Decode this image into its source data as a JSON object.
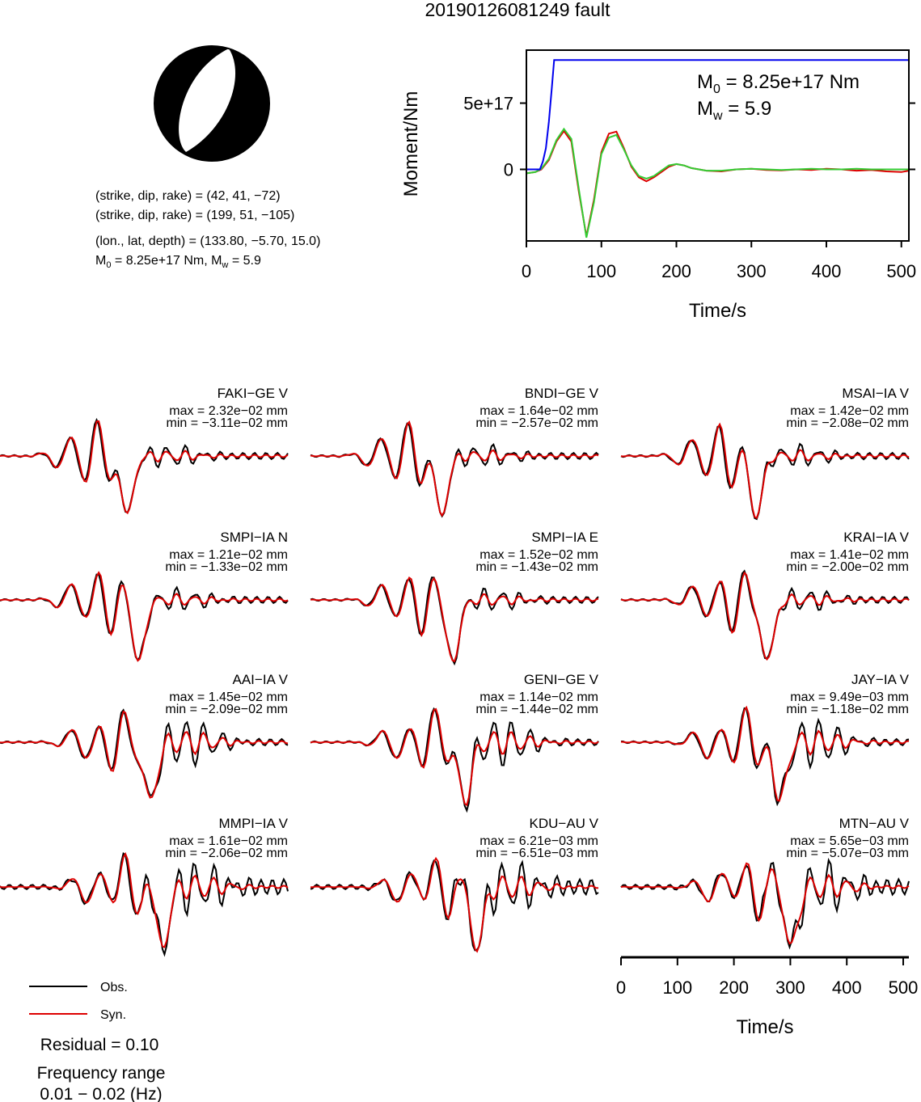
{
  "title": "20190126081249 fault",
  "mechanism": {
    "planes": [
      "(strike, dip, rake) = (42, 41, −72)",
      "(strike, dip, rake) = (199, 51, −105)"
    ],
    "location": "(lon., lat, depth) = (133.80, −5.70, 15.0)",
    "moment_base": "M",
    "moment_sub": "0",
    "moment_rest": " = 8.25e+17 Nm, M",
    "mw_sub": "w",
    "mw_rest": " = 5.9"
  },
  "colors": {
    "observed": "#000000",
    "synthetic": "#dd0000",
    "moment": "#0000ee",
    "stf_green": "#33cc33"
  },
  "chart_data": [
    {
      "type": "line",
      "name": "moment-rate",
      "xlabel": "Time/s",
      "ylabel": "Moment/Nm",
      "xlim": [
        0,
        510
      ],
      "ylim": [
        -5.4e+17,
        9e+17
      ],
      "xticks": [
        0,
        100,
        200,
        300,
        400,
        500
      ],
      "xtick_labels": [
        "0",
        "100",
        "200",
        "300",
        "400",
        "500"
      ],
      "yticks": [
        0,
        5e+17
      ],
      "ytick_labels": [
        "0",
        "5e+17"
      ],
      "annotation": {
        "m_base": "M",
        "m_sub": "0",
        "m_rest": " = 8.25e+17 Nm",
        "w_base": "M",
        "w_sub": "w",
        "w_rest": " = 5.9"
      },
      "series": [
        {
          "color": "#0000ee",
          "x": [
            0,
            18,
            22,
            26,
            30,
            34,
            37,
            510
          ],
          "y": [
            0,
            0,
            6e+16,
            1.6e+17,
            3.6e+17,
            6.2e+17,
            8.25e+17,
            8.25e+17
          ]
        },
        {
          "color": "#33cc33",
          "x": [
            0,
            12,
            20,
            30,
            40,
            50,
            60,
            70,
            80,
            90,
            100,
            110,
            120,
            130,
            140,
            150,
            160,
            170,
            180,
            190,
            200,
            210,
            220,
            230,
            240,
            260,
            280,
            300,
            320,
            340,
            360,
            380,
            400,
            420,
            440,
            460,
            480,
            500,
            510
          ],
          "y": [
            -3e+16,
            -2e+16,
            5000000000000000.0,
            8e+16,
            2.2e+17,
            3.05e+17,
            2.3e+17,
            -1.5e+17,
            -5.15e+17,
            -2.5e+17,
            1.15e+17,
            2.4e+17,
            2.6e+17,
            1.5e+17,
            3e+16,
            -5e+16,
            -7e+16,
            -5e+16,
            -1e+16,
            3e+16,
            4e+16,
            3e+16,
            1e+16,
            0,
            -1e+16,
            -1e+16,
            0,
            5000000000000000.0,
            0,
            -5000000000000000.0,
            0,
            5000000000000000.0,
            0,
            0,
            5000000000000000.0,
            0,
            0,
            0,
            0
          ]
        },
        {
          "color": "#dd0000",
          "x": [
            0,
            12,
            20,
            30,
            40,
            50,
            60,
            70,
            80,
            90,
            100,
            110,
            120,
            130,
            140,
            150,
            160,
            170,
            180,
            190,
            200,
            210,
            220,
            230,
            240,
            260,
            280,
            300,
            320,
            340,
            360,
            380,
            400,
            420,
            440,
            460,
            480,
            500,
            510
          ],
          "y": [
            -3e+16,
            -2e+16,
            0,
            7e+16,
            2.1e+17,
            2.9e+17,
            2.1e+17,
            -1.7e+17,
            -5.05e+17,
            -2.3e+17,
            1.3e+17,
            2.7e+17,
            2.85e+17,
            1.6e+17,
            2e+16,
            -6e+16,
            -9e+16,
            -6e+16,
            -2e+16,
            2e+16,
            4e+16,
            3e+16,
            1e+16,
            0,
            -1e+16,
            -1.5e+16,
            0,
            5000000000000000.0,
            -5000000000000000.0,
            -8000000000000000.0,
            0,
            -5000000000000000.0,
            5000000000000000.0,
            0,
            -1e+16,
            -5000000000000000.0,
            -1.5e+16,
            -2e+16,
            -1e+16
          ]
        }
      ]
    },
    {
      "type": "line",
      "name": "waveforms",
      "xlabel": "Time/s",
      "xlim": [
        0,
        510
      ],
      "xticks": [
        0,
        100,
        200,
        300,
        400,
        500
      ],
      "xtick_labels": [
        "0",
        "100",
        "200",
        "300",
        "400",
        "500"
      ],
      "legend": {
        "position": "bottom-left",
        "entries": [
          "Obs.",
          "Syn."
        ]
      },
      "residual": "Residual = 0.10",
      "frequency_label": "Frequency range",
      "frequency_range": "0.01 − 0.02 (Hz)",
      "stations": [
        {
          "name": "FAKI−GE V",
          "max": "max = 2.32e−02 mm",
          "min": "min = −3.11e−02 mm"
        },
        {
          "name": "BNDI−GE V",
          "max": "max = 1.64e−02 mm",
          "min": "min = −2.57e−02 mm"
        },
        {
          "name": "MSAI−IA V",
          "max": "max = 1.42e−02 mm",
          "min": "min = −2.08e−02 mm"
        },
        {
          "name": "SMPI−IA N",
          "max": "max = 1.21e−02 mm",
          "min": "min = −1.33e−02 mm"
        },
        {
          "name": "SMPI−IA E",
          "max": "max = 1.52e−02 mm",
          "min": "min = −1.43e−02 mm"
        },
        {
          "name": "KRAI−IA V",
          "max": "max = 1.41e−02 mm",
          "min": "min = −2.00e−02 mm"
        },
        {
          "name": "AAI−IA V",
          "max": "max = 1.45e−02 mm",
          "min": "min = −2.09e−02 mm"
        },
        {
          "name": "GENI−GE V",
          "max": "max = 1.14e−02 mm",
          "min": "min = −1.44e−02 mm"
        },
        {
          "name": "JAY−IA V",
          "max": "max = 9.49e−03 mm",
          "min": "min = −1.18e−02 mm"
        },
        {
          "name": "MMPI−IA V",
          "max": "max = 1.61e−02 mm",
          "min": "min = −2.06e−02 mm"
        },
        {
          "name": "KDU−AU V",
          "max": "max = 6.21e−03 mm",
          "min": "min = −6.51e−03 mm"
        },
        {
          "name": "MTN−AU V",
          "max": "max = 5.65e−03 mm",
          "min": "min = −5.07e−03 mm"
        }
      ]
    }
  ]
}
